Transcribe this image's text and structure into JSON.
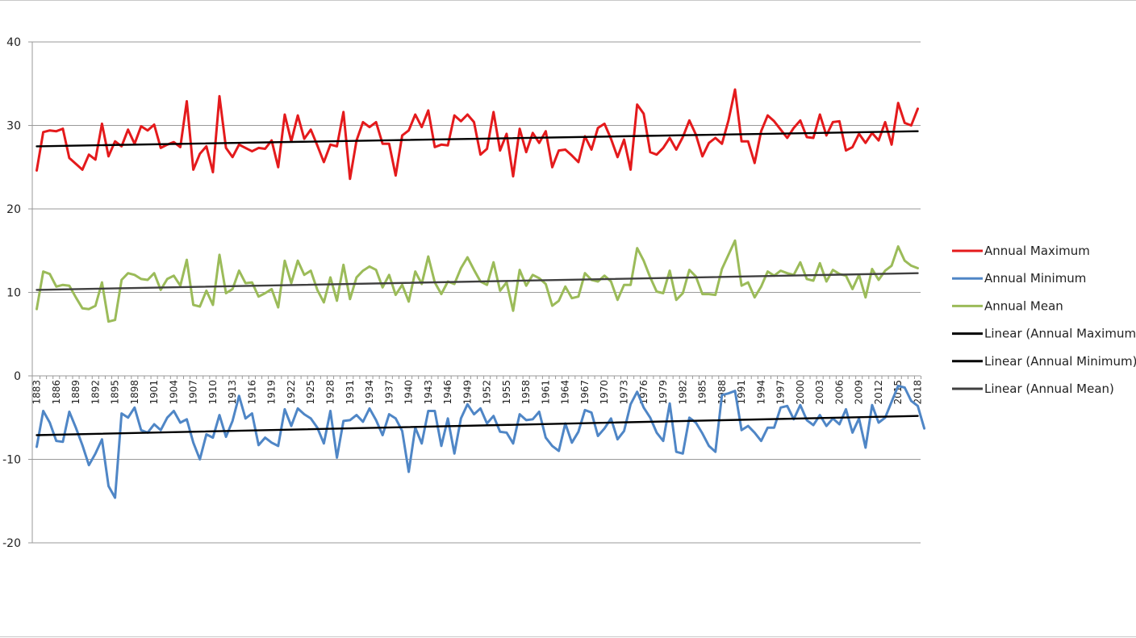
{
  "chart_data": {
    "type": "line",
    "title": "",
    "xlabel": "",
    "ylabel": "",
    "ylim": [
      -20,
      40
    ],
    "yticks": [
      "40",
      "30",
      "20",
      "10",
      "0",
      "-10",
      "-20"
    ],
    "grid": "horizontal major gridlines",
    "legend": "right",
    "x_start": 1883,
    "x_end": 2018,
    "xtick_labels": [
      "1883",
      "1886",
      "1889",
      "1892",
      "1895",
      "1898",
      "1901",
      "1904",
      "1907",
      "1910",
      "1913",
      "1916",
      "1919",
      "1922",
      "1925",
      "1928",
      "1931",
      "1934",
      "1937",
      "1940",
      "1943",
      "1946",
      "1949",
      "1952",
      "1955",
      "1958",
      "1961",
      "1964",
      "1967",
      "1970",
      "1973",
      "1976",
      "1979",
      "1982",
      "1985",
      "1988",
      "1991",
      "1994",
      "1997",
      "2000",
      "2003",
      "2006",
      "2009",
      "2012",
      "2015",
      "2018"
    ],
    "series": [
      {
        "name": "Annual Maximum",
        "color": "#e41a1c",
        "values": [
          24.6,
          29.2,
          29.4,
          29.3,
          29.6,
          26.1,
          25.4,
          24.7,
          26.5,
          25.9,
          30.2,
          26.3,
          28.1,
          27.5,
          29.5,
          27.8,
          29.9,
          29.4,
          30.1,
          27.3,
          27.7,
          28.0,
          27.4,
          32.9,
          24.7,
          26.6,
          27.5,
          24.4,
          33.5,
          27.3,
          26.2,
          27.7,
          27.3,
          26.9,
          27.3,
          27.2,
          28.2,
          25.0,
          31.3,
          28.1,
          31.2,
          28.4,
          29.5,
          27.6,
          25.6,
          27.7,
          27.5,
          31.6,
          23.6,
          28.2,
          30.4,
          29.8,
          30.4,
          27.8,
          27.8,
          24.0,
          28.8,
          29.4,
          31.3,
          29.8,
          31.8,
          27.4,
          27.7,
          27.6,
          31.2,
          30.5,
          31.3,
          30.4,
          26.5,
          27.2,
          31.6,
          27.0,
          29.0,
          23.9,
          29.6,
          26.8,
          29.1,
          27.9,
          29.3,
          25.0,
          27.0,
          27.1,
          26.4,
          25.6,
          28.7,
          27.1,
          29.7,
          30.2,
          28.4,
          26.2,
          28.3,
          24.7,
          32.5,
          31.4,
          26.8,
          26.5,
          27.3,
          28.5,
          27.1,
          28.6,
          30.6,
          28.9,
          26.3,
          27.9,
          28.5,
          27.8,
          30.6,
          34.3,
          28.1,
          28.1,
          25.5,
          29.3,
          31.2,
          30.5,
          29.5,
          28.5,
          29.7,
          30.6,
          28.6,
          28.5,
          31.3,
          28.8,
          30.4,
          30.5,
          27.0,
          27.4,
          29.0,
          27.9,
          29.1,
          28.2,
          30.4,
          27.7,
          32.7,
          30.3,
          30.0,
          32.0
        ]
      },
      {
        "name": "Annual Minimum",
        "color": "#4f86c6",
        "values": [
          -8.5,
          -4.2,
          -5.6,
          -7.8,
          -7.9,
          -4.3,
          -6.2,
          -8.3,
          -10.7,
          -9.3,
          -7.6,
          -13.2,
          -14.6,
          -4.5,
          -5.0,
          -3.8,
          -6.5,
          -6.8,
          -5.8,
          -6.5,
          -5.0,
          -4.2,
          -5.6,
          -5.2,
          -8.0,
          -10.0,
          -7.0,
          -7.4,
          -4.7,
          -7.3,
          -5.4,
          -2.4,
          -5.1,
          -4.5,
          -8.3,
          -7.4,
          -8.0,
          -8.4,
          -4.0,
          -6.0,
          -3.9,
          -4.6,
          -5.1,
          -6.2,
          -8.1,
          -4.2,
          -9.8,
          -5.4,
          -5.3,
          -4.7,
          -5.5,
          -3.9,
          -5.3,
          -7.1,
          -4.6,
          -5.1,
          -6.6,
          -11.5,
          -6.2,
          -8.1,
          -4.2,
          -4.2,
          -8.4,
          -5.1,
          -9.3,
          -5.1,
          -3.4,
          -4.6,
          -3.9,
          -5.7,
          -4.8,
          -6.7,
          -6.8,
          -8.1,
          -4.6,
          -5.3,
          -5.2,
          -4.3,
          -7.4,
          -8.4,
          -9.0,
          -5.7,
          -8.0,
          -6.7,
          -4.1,
          -4.4,
          -7.2,
          -6.3,
          -5.1,
          -7.6,
          -6.6,
          -3.4,
          -1.9,
          -3.8,
          -5.0,
          -6.8,
          -7.8,
          -3.3,
          -9.1,
          -9.3,
          -5.0,
          -5.6,
          -6.9,
          -8.4,
          -9.1,
          -2.3,
          -2.1,
          -1.8,
          -6.5,
          -6.0,
          -6.8,
          -7.8,
          -6.2,
          -6.2,
          -3.8,
          -3.6,
          -5.2,
          -3.5,
          -5.3,
          -5.9,
          -4.7,
          -6.0,
          -5.1,
          -5.8,
          -4.0,
          -6.8,
          -5.1,
          -8.6,
          -3.5,
          -5.6,
          -5.0,
          -3.1,
          -1.2,
          -1.4,
          -3.0,
          -3.6,
          -6.3
        ]
      },
      {
        "name": "Annual Mean",
        "color": "#9bbb59",
        "values": [
          8.0,
          12.5,
          12.2,
          10.7,
          10.9,
          10.8,
          9.4,
          8.1,
          8.0,
          8.4,
          11.2,
          6.5,
          6.7,
          11.5,
          12.3,
          12.1,
          11.6,
          11.5,
          12.3,
          10.3,
          11.6,
          12.0,
          10.8,
          13.9,
          8.5,
          8.3,
          10.2,
          8.5,
          14.5,
          9.9,
          10.4,
          12.6,
          11.1,
          11.2,
          9.5,
          9.9,
          10.4,
          8.2,
          13.8,
          11.1,
          13.8,
          12.1,
          12.6,
          10.3,
          8.8,
          11.8,
          9.0,
          13.3,
          9.2,
          11.8,
          12.6,
          13.1,
          12.7,
          10.6,
          12.1,
          9.7,
          10.9,
          8.9,
          12.5,
          11.0,
          14.3,
          11.2,
          9.8,
          11.3,
          11.0,
          12.9,
          14.2,
          12.7,
          11.3,
          10.9,
          13.6,
          10.2,
          11.2,
          7.8,
          12.7,
          10.8,
          12.1,
          11.7,
          11.0,
          8.4,
          9.0,
          10.7,
          9.3,
          9.5,
          12.3,
          11.5,
          11.3,
          12.0,
          11.3,
          9.1,
          10.9,
          10.9,
          15.3,
          13.8,
          11.8,
          10.1,
          9.9,
          12.6,
          9.1,
          9.9,
          12.7,
          11.9,
          9.8,
          9.8,
          9.7,
          12.8,
          14.5,
          16.2,
          10.8,
          11.2,
          9.4,
          10.7,
          12.5,
          12.0,
          12.6,
          12.3,
          12.1,
          13.6,
          11.6,
          11.4,
          13.5,
          11.3,
          12.7,
          12.2,
          12.0,
          10.4,
          12.1,
          9.4,
          12.8,
          11.5,
          12.6,
          13.2,
          15.5,
          13.8,
          13.2,
          12.9
        ]
      },
      {
        "name": "Linear (Annual Maximum)",
        "color": "#000000",
        "values": [
          27.5,
          29.3
        ]
      },
      {
        "name": "Linear (Annual Minimum)",
        "color": "#000000",
        "values": [
          -7.1,
          -4.8
        ]
      },
      {
        "name": "Linear (Annual Mean)",
        "color": "#404040",
        "values": [
          10.3,
          12.3
        ]
      }
    ]
  }
}
